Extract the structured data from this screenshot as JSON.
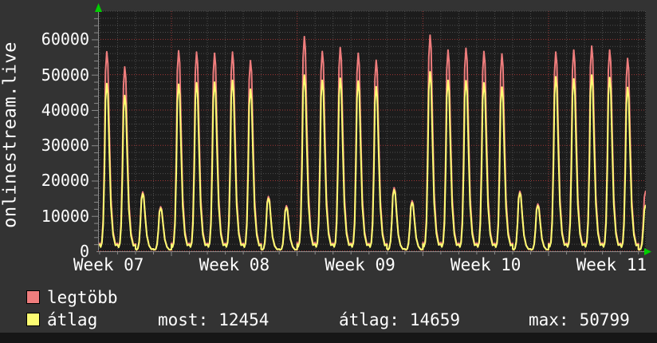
{
  "colors": {
    "background": "#333333",
    "plot_background": "#1c1c1c",
    "text": "#ffffff",
    "arrow": "#00cf00",
    "axis": "#8a8a8a",
    "bottom_bar": "#161616"
  },
  "chart_data": {
    "type": "line",
    "title": "onlinestream.live",
    "y_ticks": [
      0,
      10000,
      20000,
      30000,
      40000,
      50000,
      60000
    ],
    "y_axis_max": 68000,
    "y_minor_step": 2000,
    "x_tick_labels": [
      "Week 07",
      "Week 08",
      "Week 09",
      "Week 10",
      "Week 11"
    ],
    "grid": {
      "major_color": "#a03636",
      "minor_color": "#4e4e4e"
    },
    "legend_position": "bottom-left",
    "series": [
      {
        "name": "legtöbb",
        "color": "#ef7d7d",
        "role": "daily max"
      },
      {
        "name": "átlag",
        "color": "#fcfc72",
        "role": "daily average"
      }
    ],
    "days": [
      {
        "max": 56500,
        "avg": 47500
      },
      {
        "max": 52200,
        "avg": 44100
      },
      {
        "max": 16800,
        "avg": 16300
      },
      {
        "max": 12600,
        "avg": 12200
      },
      {
        "max": 56800,
        "avg": 47300
      },
      {
        "max": 56400,
        "avg": 47700
      },
      {
        "max": 56100,
        "avg": 47900
      },
      {
        "max": 56400,
        "avg": 48400
      },
      {
        "max": 54000,
        "avg": 45900
      },
      {
        "max": 15500,
        "avg": 15000
      },
      {
        "max": 12900,
        "avg": 12400
      },
      {
        "max": 60800,
        "avg": 49900
      },
      {
        "max": 56600,
        "avg": 48400
      },
      {
        "max": 57700,
        "avg": 49000
      },
      {
        "max": 56100,
        "avg": 48200
      },
      {
        "max": 54100,
        "avg": 46600
      },
      {
        "max": 18000,
        "avg": 17400
      },
      {
        "max": 14300,
        "avg": 13800
      },
      {
        "max": 61200,
        "avg": 50799
      },
      {
        "max": 57000,
        "avg": 48400
      },
      {
        "max": 57500,
        "avg": 48300
      },
      {
        "max": 56600,
        "avg": 47700
      },
      {
        "max": 55900,
        "avg": 46500
      },
      {
        "max": 17000,
        "avg": 16500
      },
      {
        "max": 13400,
        "avg": 12900
      },
      {
        "max": 56400,
        "avg": 49400
      },
      {
        "max": 57000,
        "avg": 48800
      },
      {
        "max": 58100,
        "avg": 49900
      },
      {
        "max": 57000,
        "avg": 49200
      },
      {
        "max": 54600,
        "avg": 46400
      }
    ],
    "tail": {
      "fraction": 0.43,
      "end_frac": 0.97,
      "max": 17000,
      "avg": 13000
    },
    "day_shape": [
      [
        0.0,
        0.04
      ],
      [
        0.06,
        0.025
      ],
      [
        0.13,
        0.05
      ],
      [
        0.2,
        0.16
      ],
      [
        0.27,
        0.48
      ],
      [
        0.33,
        0.9
      ],
      [
        0.4,
        1.0
      ],
      [
        0.46,
        0.94
      ],
      [
        0.54,
        0.6
      ],
      [
        0.63,
        0.27
      ],
      [
        0.75,
        0.1
      ],
      [
        0.88,
        0.035
      ],
      [
        1.0,
        0.04
      ]
    ]
  },
  "legend": {
    "items": [
      {
        "label": "legtöbb",
        "color": "#ef7d7d"
      },
      {
        "label": "átlag",
        "color": "#fcfc72"
      }
    ]
  },
  "stats": [
    {
      "label": "most:",
      "value": "12454"
    },
    {
      "label": "átlag:",
      "value": "14659"
    },
    {
      "label": "max:",
      "value": "50799"
    }
  ]
}
